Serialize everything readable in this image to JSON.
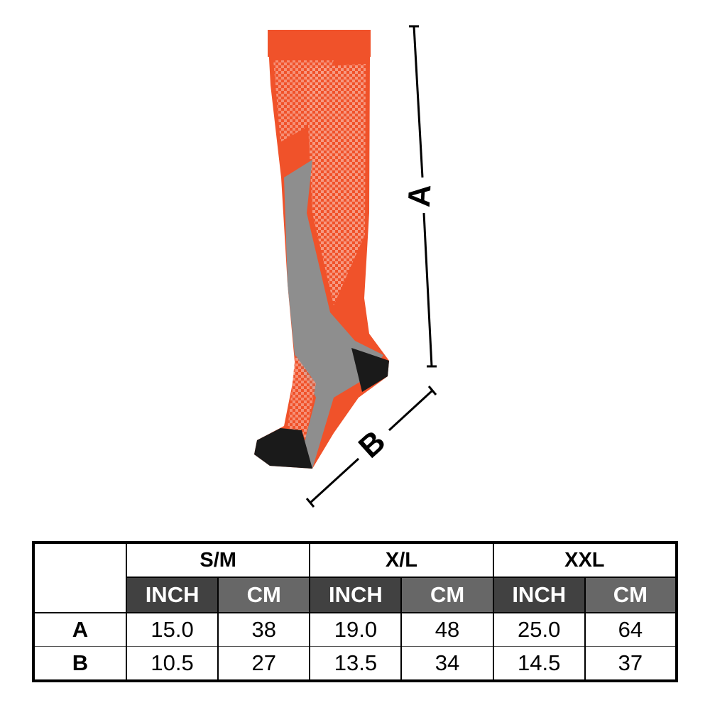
{
  "diagram": {
    "label_a": "A",
    "label_b": "B",
    "sock_colors": {
      "main": "#f0522a",
      "panel": "#8e8e8e",
      "heel_toe": "#1a1a1a"
    }
  },
  "table": {
    "sizes": [
      "S/M",
      "X/L",
      "XXL"
    ],
    "units": [
      "INCH",
      "CM"
    ],
    "rows": [
      {
        "label": "A",
        "values": [
          "15.0",
          "38",
          "19.0",
          "48",
          "25.0",
          "64"
        ]
      },
      {
        "label": "B",
        "values": [
          "10.5",
          "27",
          "13.5",
          "34",
          "14.5",
          "37"
        ]
      }
    ]
  }
}
